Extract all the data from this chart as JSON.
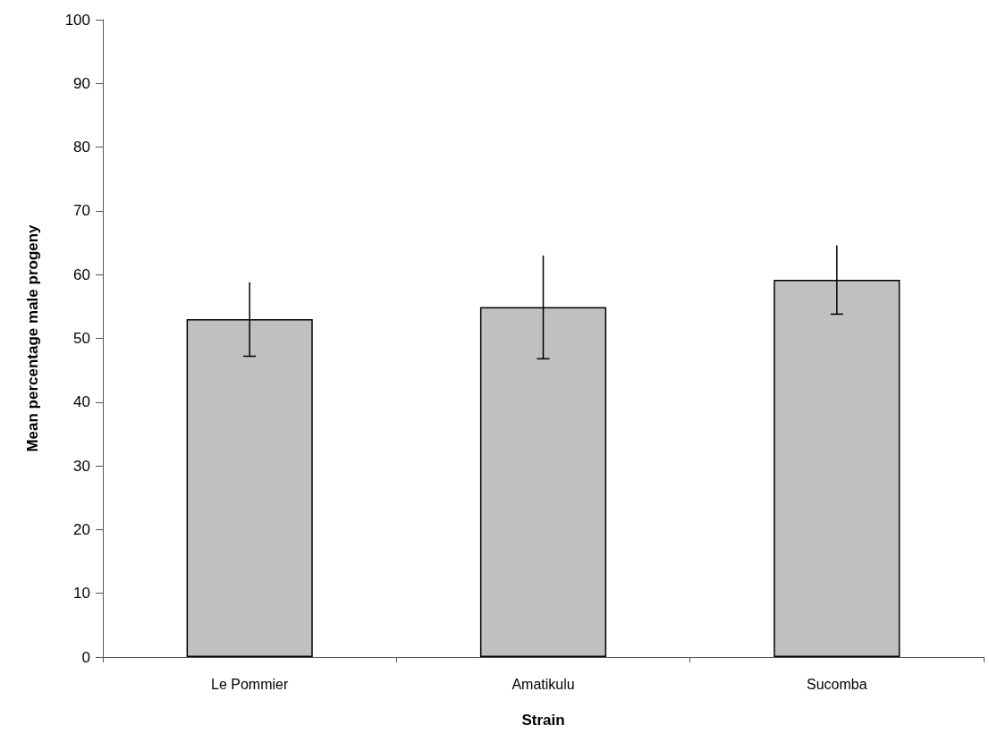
{
  "chart_data": {
    "type": "bar",
    "xlabel": "Strain",
    "ylabel": "Mean percentage male progeny",
    "categories": [
      "Le Pommier",
      "Amatikulu",
      "Sucomba"
    ],
    "values": [
      53,
      54.9,
      59.2
    ],
    "errors": [
      5.8,
      8.1,
      5.4
    ],
    "color": "#c0c0c0",
    "ylim": [
      0,
      100
    ],
    "yticks": [
      0,
      10,
      20,
      30,
      40,
      50,
      60,
      70,
      80,
      90,
      100
    ],
    "grid": false
  }
}
